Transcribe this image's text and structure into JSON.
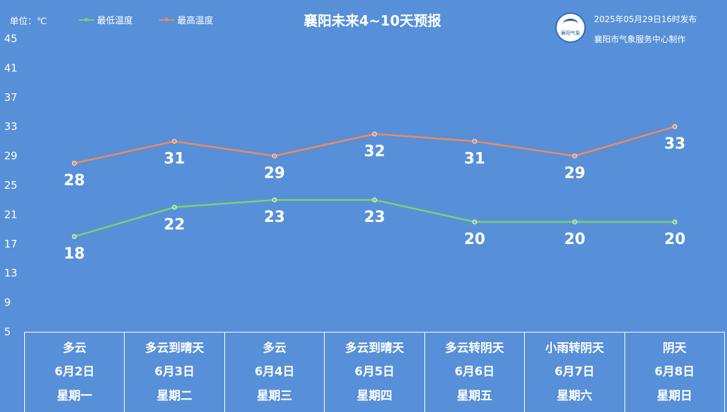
{
  "header": {
    "unit": "单位：℃",
    "title": "襄阳未来4~10天预报",
    "published": "2025年05月29日16时发布",
    "maker": "襄阳市气象服务中心制作",
    "logo_text": "襄阳气象"
  },
  "colors": {
    "low": "#7cd36b",
    "high": "#f08a5d",
    "background": "#5790d8"
  },
  "chart_data": {
    "type": "line",
    "title": "襄阳未来4~10天预报",
    "ylabel": "单位：℃",
    "ylim": [
      5,
      45
    ],
    "yticks": [
      5,
      9,
      13,
      17,
      21,
      25,
      29,
      33,
      37,
      41,
      45
    ],
    "categories": [
      "6月2日",
      "6月3日",
      "6月4日",
      "6月5日",
      "6月6日",
      "6月7日",
      "6月8日"
    ],
    "legend_placement": "top-left",
    "grid": false,
    "series": [
      {
        "name": "最低温度",
        "values": [
          18,
          22,
          23,
          23,
          20,
          20,
          20
        ]
      },
      {
        "name": "最高温度",
        "values": [
          28,
          31,
          29,
          32,
          31,
          29,
          33
        ]
      }
    ]
  },
  "days": [
    {
      "weather": "多云",
      "date": "6月2日",
      "weekday": "星期一"
    },
    {
      "weather": "多云到晴天",
      "date": "6月3日",
      "weekday": "星期二"
    },
    {
      "weather": "多云",
      "date": "6月4日",
      "weekday": "星期三"
    },
    {
      "weather": "多云到晴天",
      "date": "6月5日",
      "weekday": "星期四"
    },
    {
      "weather": "多云转阴天",
      "date": "6月6日",
      "weekday": "星期五"
    },
    {
      "weather": "小雨转阴天",
      "date": "6月7日",
      "weekday": "星期六"
    },
    {
      "weather": "阴天",
      "date": "6月8日",
      "weekday": "星期日"
    }
  ]
}
